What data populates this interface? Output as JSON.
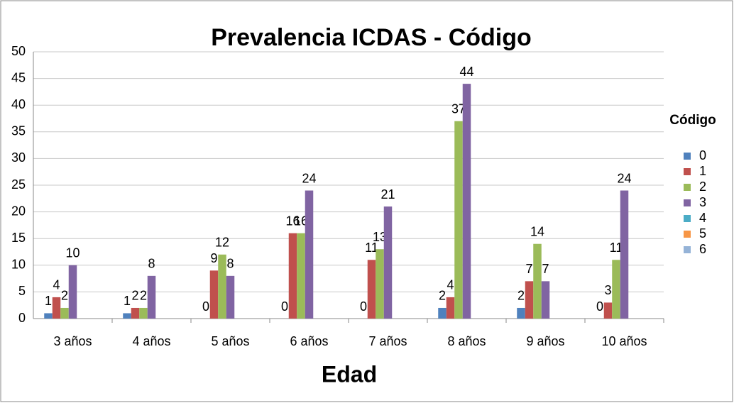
{
  "chart_data": {
    "type": "bar",
    "title": "Prevalencia ICDAS - Código",
    "x_label": "Edad",
    "legend_title": "Código",
    "legend": "right",
    "categories": [
      "3 años",
      "4 años",
      "5 años",
      "6 años",
      "7 años",
      "8 años",
      "9 años",
      "10 años"
    ],
    "series": [
      {
        "name": "0",
        "color": "#4f81bd",
        "values": [
          1,
          1,
          0,
          0,
          0,
          2,
          2,
          0
        ]
      },
      {
        "name": "1",
        "color": "#c0504d",
        "values": [
          4,
          2,
          9,
          16,
          11,
          4,
          7,
          3
        ]
      },
      {
        "name": "2",
        "color": "#9bbb59",
        "values": [
          2,
          2,
          12,
          16,
          13,
          37,
          14,
          11
        ]
      },
      {
        "name": "3",
        "color": "#8064a2",
        "values": [
          10,
          8,
          8,
          24,
          21,
          44,
          7,
          24
        ]
      },
      {
        "name": "4",
        "color": "#4bacc6",
        "values": [
          null,
          null,
          null,
          null,
          null,
          null,
          null,
          null
        ]
      },
      {
        "name": "5",
        "color": "#f79646",
        "values": [
          null,
          null,
          null,
          null,
          null,
          null,
          null,
          null
        ]
      },
      {
        "name": "6",
        "color": "#95b3d7",
        "values": [
          null,
          null,
          null,
          null,
          null,
          null,
          null,
          null
        ]
      }
    ],
    "ylim": [
      0,
      50
    ],
    "yticks": [
      0,
      5,
      10,
      15,
      20,
      25,
      30,
      35,
      40,
      45,
      50
    ],
    "grid": true
  }
}
